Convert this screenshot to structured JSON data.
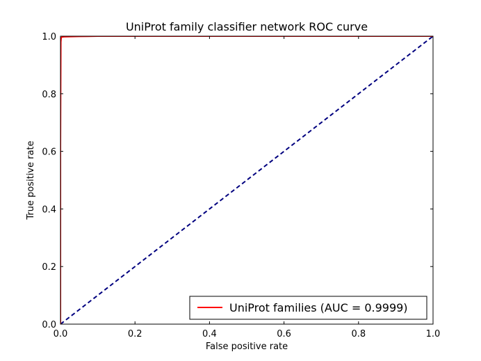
{
  "chart_data": {
    "type": "line",
    "title": "UniProt family classifier network ROC curve",
    "xlabel": "False positive rate",
    "ylabel": "True positive rate",
    "xlim": [
      0.0,
      1.0
    ],
    "ylim": [
      0.0,
      1.0
    ],
    "xticks": [
      "0.0",
      "0.2",
      "0.4",
      "0.6",
      "0.8",
      "1.0"
    ],
    "yticks": [
      "0.0",
      "0.2",
      "0.4",
      "0.6",
      "0.8",
      "1.0"
    ],
    "xtick_values": [
      0.0,
      0.2,
      0.4,
      0.6,
      0.8,
      1.0
    ],
    "ytick_values": [
      0.0,
      0.2,
      0.4,
      0.6,
      0.8,
      1.0
    ],
    "grid": false,
    "legend_position": "lower-right",
    "series": [
      {
        "name": "UniProt families (AUC = 0.9999)",
        "color": "#ff0000",
        "style": "solid",
        "x": [
          0.0,
          0.0,
          0.001,
          0.002,
          0.004,
          0.01,
          0.05,
          0.1,
          0.3,
          0.6,
          1.0
        ],
        "y": [
          0.0,
          0.62,
          0.98,
          0.995,
          0.997,
          0.998,
          0.999,
          1.0,
          1.0,
          1.0,
          1.0
        ]
      },
      {
        "name": "",
        "color": "#00007f",
        "style": "dashed",
        "x": [
          0.0,
          1.0
        ],
        "y": [
          0.0,
          1.0
        ]
      }
    ]
  }
}
